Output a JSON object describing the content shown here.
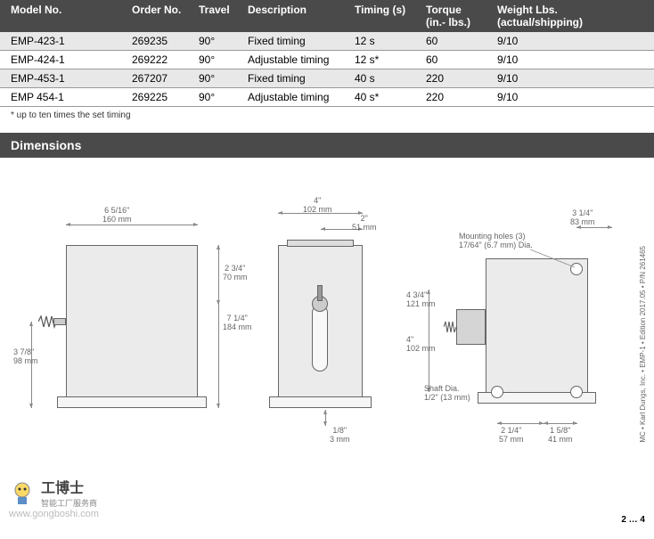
{
  "table": {
    "headers": [
      "Model No.",
      "Order No.",
      "Travel",
      "Description",
      "Timing (s)",
      "Torque\n(in.- lbs.)",
      "Weight Lbs.\n(actual/shipping)"
    ],
    "rows": [
      [
        "EMP-423-1",
        "269235",
        "90°",
        "Fixed timing",
        "12 s",
        "60",
        "9/10"
      ],
      [
        "EMP-424-1",
        "269222",
        "90°",
        "Adjustable timing",
        "12 s*",
        "60",
        "9/10"
      ],
      [
        "EMP-453-1",
        "267207",
        "90°",
        "Fixed timing",
        "40 s",
        "220",
        "9/10"
      ],
      [
        "EMP 454-1",
        "269225",
        "90°",
        "Adjustable timing",
        "40 s*",
        "220",
        "9/10"
      ]
    ]
  },
  "footnote": "* up to ten times the set timing",
  "section_title": "Dimensions",
  "dims": {
    "d1_in": "6  5/16\"",
    "d1_mm": "160 mm",
    "d2_in": "3  7/8\"",
    "d2_mm": "98 mm",
    "d3_in": "2  3/4\"",
    "d3_mm": "70 mm",
    "d4_in": "7  1/4\"",
    "d4_mm": "184 mm",
    "d5_in": "4\"",
    "d5_mm": "102 mm",
    "d6_in": "2\"",
    "d6_mm": "51 mm",
    "d7_in": "1/8\"",
    "d7_mm": "3 mm",
    "d8_in": "4  3/4\"",
    "d8_mm": "121 mm",
    "d9_in": "4\"",
    "d9_mm": "102 mm",
    "d10_in": "3 1/4\"",
    "d10_mm": "83 mm",
    "d11_in": "2  1/4\"",
    "d11_mm": "57 mm",
    "d12_in": "1  5/8\"",
    "d12_mm": "41 mm",
    "mount_label": "Mounting holes (3)",
    "mount_dia": "17/64\" (6.7 mm) Dia.",
    "shaft_label": "Shaft Dia.",
    "shaft_dia": "1/2\" (13 mm)"
  },
  "watermark_cn": "工博士",
  "watermark_sub": "智能工厂服务商",
  "watermark_url": "www.gongboshi.com",
  "side_credit": "MC • Karl Dungs, Inc. • EMP-1 • Edition 2017.05 • P/N 261465",
  "page": "2 … 4"
}
